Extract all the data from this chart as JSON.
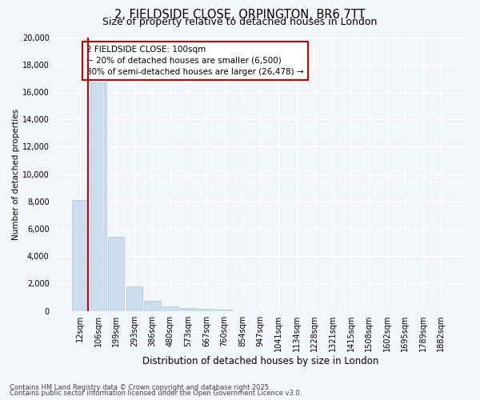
{
  "title_line1": "2, FIELDSIDE CLOSE, ORPINGTON, BR6 7TT",
  "title_line2": "Size of property relative to detached houses in London",
  "xlabel": "Distribution of detached houses by size in London",
  "ylabel": "Number of detached properties",
  "categories": [
    "12sqm",
    "106sqm",
    "199sqm",
    "293sqm",
    "386sqm",
    "480sqm",
    "573sqm",
    "667sqm",
    "760sqm",
    "854sqm",
    "947sqm",
    "1041sqm",
    "1134sqm",
    "1228sqm",
    "1321sqm",
    "1415sqm",
    "1508sqm",
    "1602sqm",
    "1695sqm",
    "1789sqm",
    "1882sqm"
  ],
  "values": [
    8100,
    16700,
    5400,
    1800,
    750,
    330,
    200,
    130,
    100,
    0,
    0,
    0,
    0,
    0,
    0,
    0,
    0,
    0,
    0,
    0,
    0
  ],
  "bar_color": "#ccdded",
  "bar_edge_color": "#aac5d8",
  "annotation_text": "2 FIELDSIDE CLOSE: 100sqm\n← 20% of detached houses are smaller (6,500)\n80% of semi-detached houses are larger (26,478) →",
  "ylim": [
    0,
    20000
  ],
  "yticks": [
    0,
    2000,
    4000,
    6000,
    8000,
    10000,
    12000,
    14000,
    16000,
    18000,
    20000
  ],
  "footer_line1": "Contains HM Land Registry data © Crown copyright and database right 2025.",
  "footer_line2": "Contains public sector information licensed under the Open Government Licence v3.0.",
  "background_color": "#f2f5f9",
  "grid_color": "#ffffff",
  "annotation_box_color": "#ffffff",
  "annotation_box_edge": "#cc0000",
  "red_line_color": "#cc0000",
  "bar_width": 0.9
}
